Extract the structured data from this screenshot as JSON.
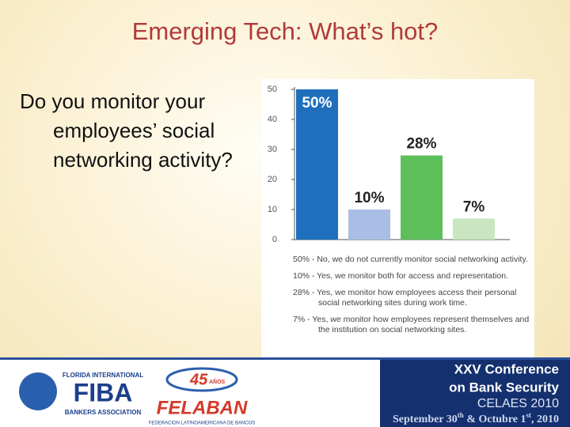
{
  "title": "Emerging Tech: What’s hot?",
  "question": "Do you monitor your employees’ social networking activity?",
  "chart_data": {
    "type": "bar",
    "values": [
      50,
      10,
      28,
      7
    ],
    "value_labels": [
      "50%",
      "10%",
      "28%",
      "7%"
    ],
    "colors": [
      "#1f6fbd",
      "#a9bde6",
      "#5cbf5a",
      "#c9e6c0"
    ],
    "ylim": [
      0,
      50
    ],
    "yticks": [
      0,
      10,
      20,
      30,
      40,
      50
    ]
  },
  "notes": [
    "50% - No, we do not currently monitor social networking activity.",
    "10% - Yes, we monitor both for access and representation.",
    "28% - Yes, we monitor how employees access their personal social networking sites during work time.",
    "7% - Yes, we monitor how employees represent themselves and the institution on social networking sites."
  ],
  "footer": {
    "fiba_top": "FLORIDA INTERNATIONAL",
    "fiba": "FIBA",
    "fiba_bottom": "BANKERS ASSOCIATION",
    "years": "45",
    "years_word": "AÑOS",
    "felaban": "FELABAN",
    "felaban_sub": "FEDERACION LATINOAMERICANA DE BANCOS",
    "conf1": "XXV Conference",
    "conf2": "on Bank Security",
    "conf3": "CELAES 2010",
    "date": [
      "September 30",
      "th",
      " & Octubre 1",
      "st",
      ", 2010"
    ]
  }
}
